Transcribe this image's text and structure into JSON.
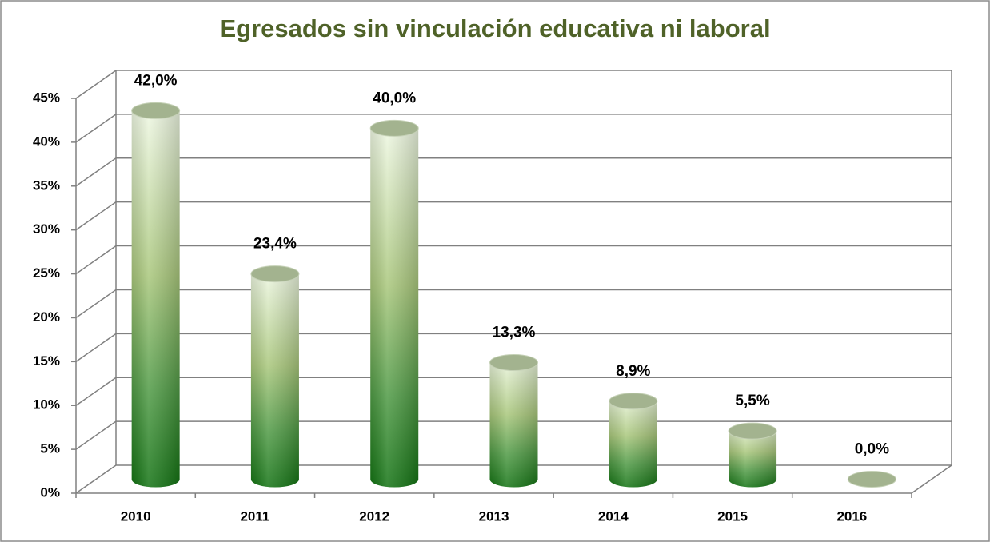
{
  "chart_data": {
    "type": "bar3d",
    "title": "Egresados sin vinculación educativa ni laboral",
    "categories": [
      "2010",
      "2011",
      "2012",
      "2013",
      "2014",
      "2015",
      "2016"
    ],
    "values": [
      42.0,
      23.4,
      40.0,
      13.3,
      8.9,
      5.5,
      0.0
    ],
    "value_labels": [
      "42,0%",
      "23,4%",
      "40,0%",
      "13,3%",
      "8,9%",
      "5,5%",
      "0,0%"
    ],
    "color": "#2e8b2e",
    "ylim": [
      0,
      45
    ],
    "yticks": [
      {
        "value": 0,
        "label": "0%"
      },
      {
        "value": 5,
        "label": "5%"
      },
      {
        "value": 10,
        "label": "10%"
      },
      {
        "value": 15,
        "label": "15%"
      },
      {
        "value": 20,
        "label": "20%"
      },
      {
        "value": 25,
        "label": "25%"
      },
      {
        "value": 30,
        "label": "30%"
      },
      {
        "value": 35,
        "label": "35%"
      },
      {
        "value": 40,
        "label": "40%"
      },
      {
        "value": 45,
        "label": "45%"
      }
    ],
    "grid": true
  }
}
